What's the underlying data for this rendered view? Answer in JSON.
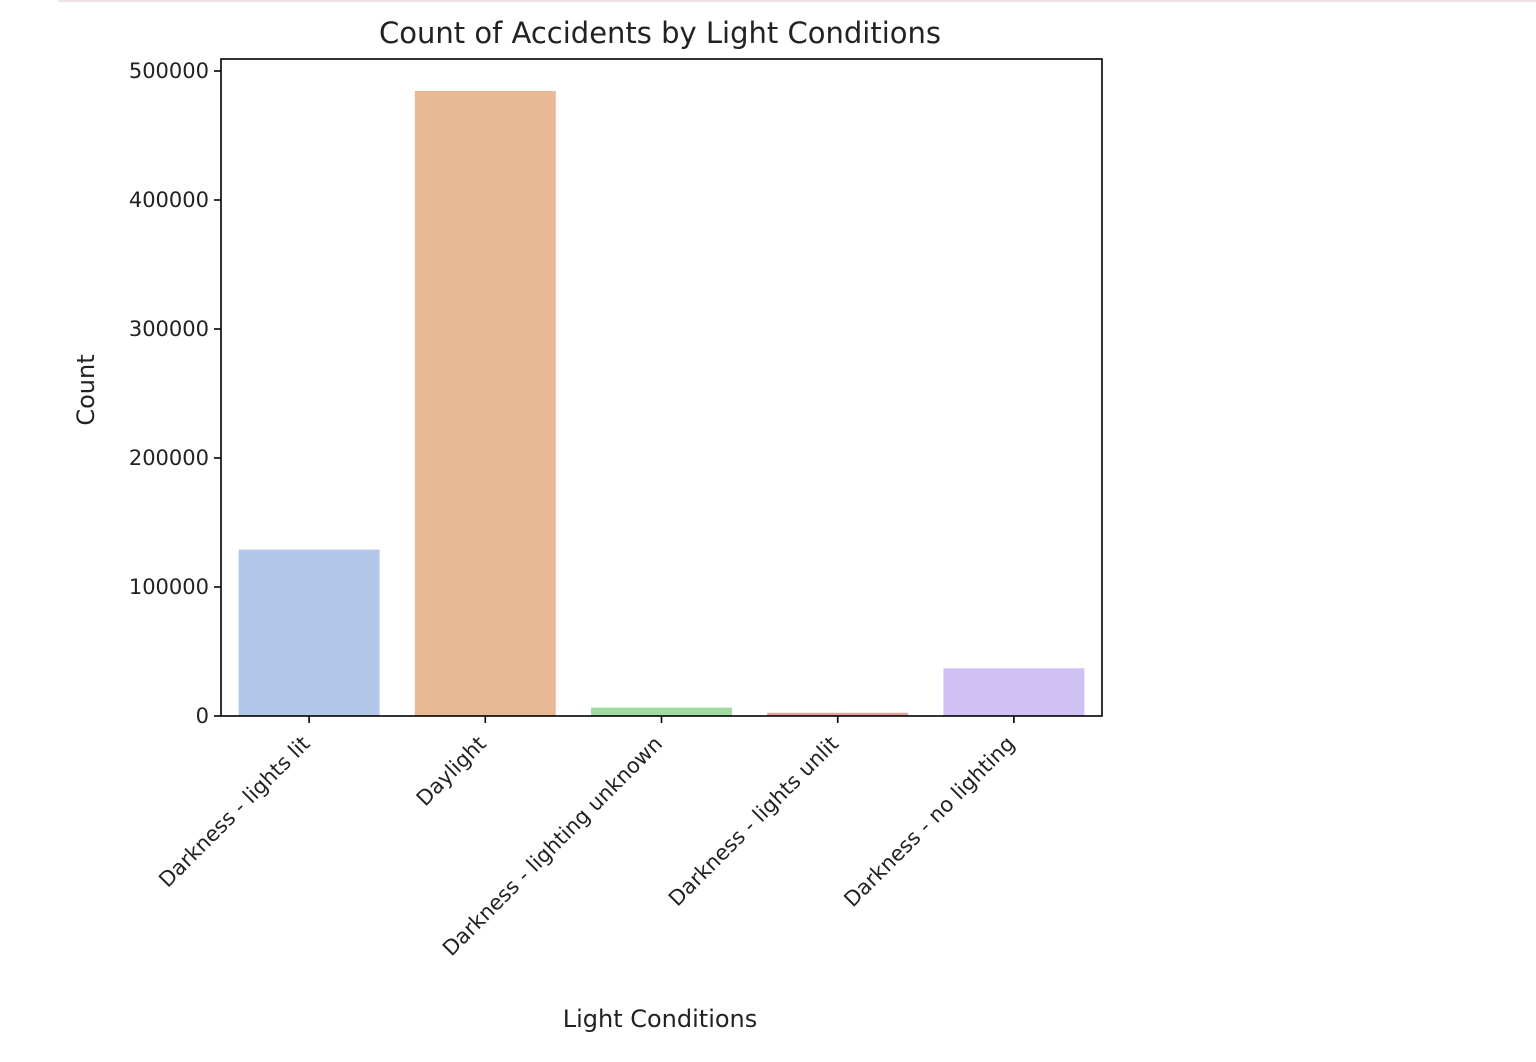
{
  "chart_data": {
    "type": "bar",
    "title": "Count of Accidents by Light Conditions",
    "xlabel": "Light Conditions",
    "ylabel": "Count",
    "categories": [
      "Darkness - lights lit",
      "Daylight",
      "Darkness - lighting unknown",
      "Darkness - lights unlit",
      "Darkness - no lighting"
    ],
    "values": [
      129000,
      484500,
      6500,
      2500,
      37000
    ],
    "colors": [
      "#b3c8e9",
      "#e8b994",
      "#a1dba1",
      "#e6a19e",
      "#cfc1f4"
    ],
    "ylim": [
      0,
      510000
    ],
    "yticks": [
      0,
      100000,
      200000,
      300000,
      400000,
      500000
    ],
    "ytick_labels": [
      "0",
      "100000",
      "200000",
      "300000",
      "400000",
      "500000"
    ],
    "grid": false,
    "legend": "none"
  }
}
